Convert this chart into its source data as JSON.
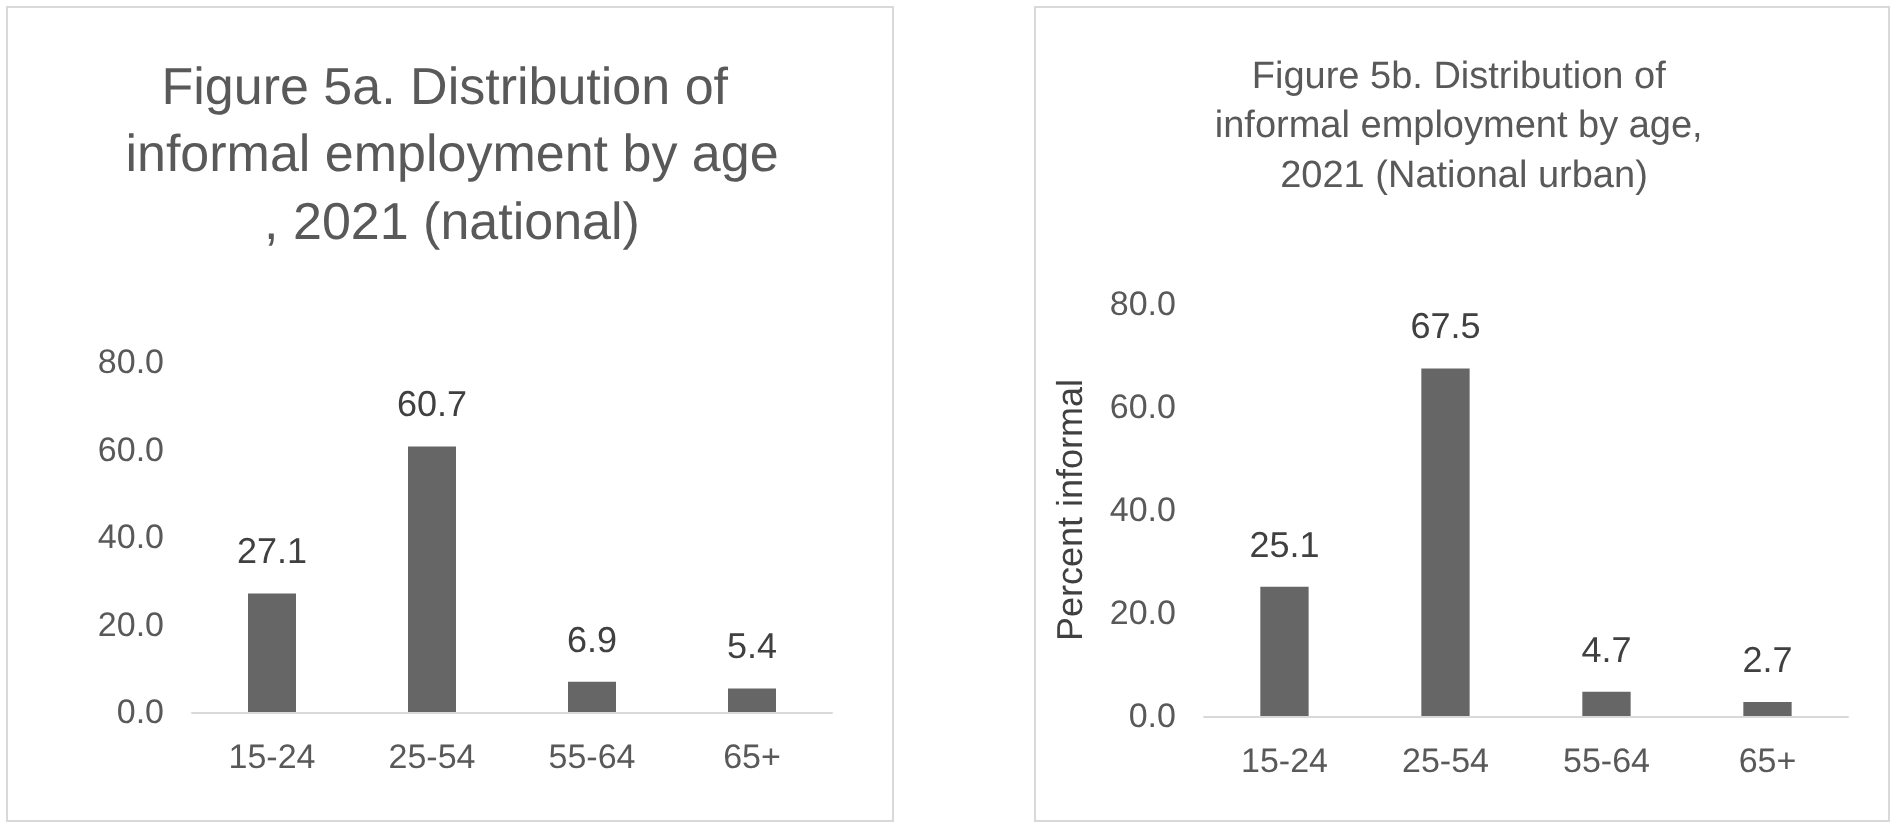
{
  "chart_data": [
    {
      "type": "bar",
      "title": "Figure 5a. Distribution of informal employment by age, 2021 (national)",
      "categories": [
        "15-24",
        "25-54",
        "55-64",
        "65+"
      ],
      "values": [
        27.1,
        60.7,
        6.9,
        5.4
      ],
      "color": "#666666",
      "ylim": [
        0,
        80
      ],
      "yticks": [
        {
          "value": 0,
          "label": "0.0"
        },
        {
          "value": 20,
          "label": "20.0"
        },
        {
          "value": 40,
          "label": "40.0"
        },
        {
          "value": 60,
          "label": "60.0"
        },
        {
          "value": 80,
          "label": "80.0"
        }
      ],
      "data_labels": true,
      "grid": false
    },
    {
      "type": "bar",
      "title": "Figure 5b. Distribution of informal employment by age, 2021 (National urban)",
      "ylabel": "Percent informal",
      "categories": [
        "15-24",
        "25-54",
        "55-64",
        "65+"
      ],
      "values": [
        25.1,
        67.5,
        4.7,
        2.7
      ],
      "color": "#666666",
      "ylim": [
        0,
        80
      ],
      "yticks": [
        {
          "value": 0,
          "label": "0.0"
        },
        {
          "value": 20,
          "label": "20.0"
        },
        {
          "value": 40,
          "label": "40.0"
        },
        {
          "value": 60,
          "label": "60.0"
        },
        {
          "value": 80,
          "label": "80.0"
        }
      ],
      "data_labels": true,
      "grid": false
    }
  ]
}
